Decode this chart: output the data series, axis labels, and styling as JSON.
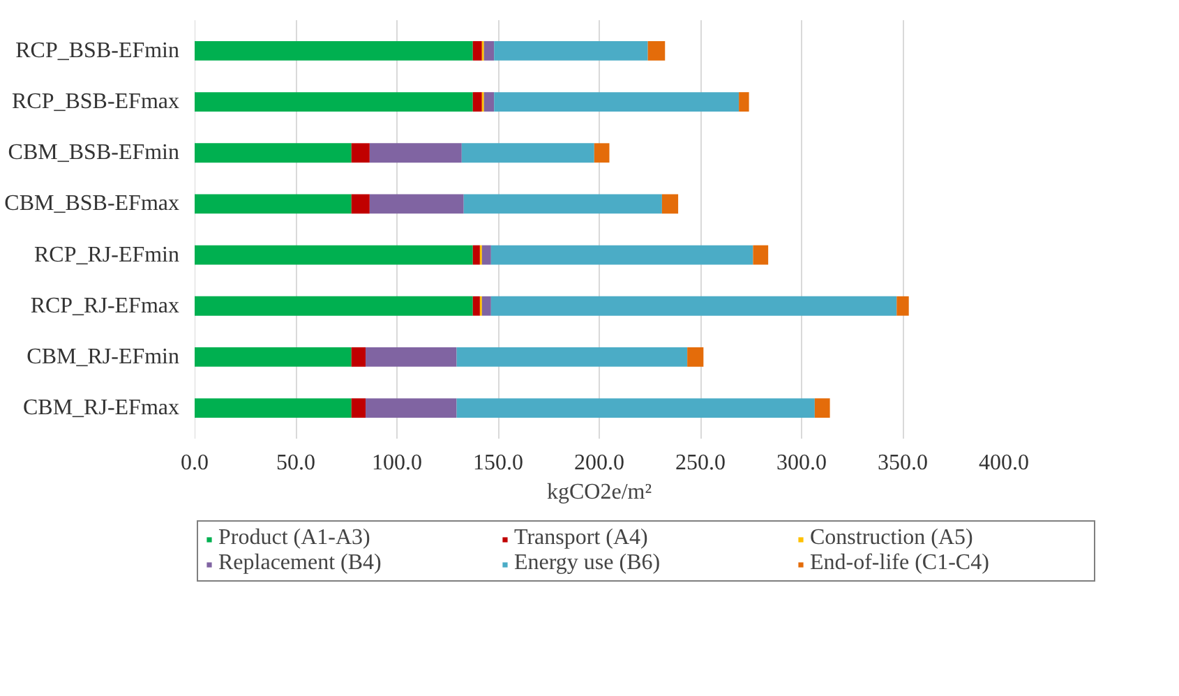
{
  "chart_data": {
    "type": "bar",
    "orientation": "horizontal",
    "stacked": true,
    "xlabel": "kgCO2e/m²",
    "categories": [
      "RCP_BSB-EFmin",
      "RCP_BSB-EFmax",
      "CBM_BSB-EFmin",
      "CBM_BSB-EFmax",
      "RCP_RJ-EFmin",
      "RCP_RJ-EFmax",
      "CBM_RJ-EFmin",
      "CBM_RJ-EFmax"
    ],
    "series": [
      {
        "name": "Product (A1-A3)",
        "color": "#00b050",
        "values": [
          137.5,
          137.5,
          77.5,
          77.5,
          137.5,
          137.5,
          77.5,
          77.5
        ]
      },
      {
        "name": "Transport (A4)",
        "color": "#c00000",
        "values": [
          4.5,
          4.5,
          9,
          9,
          3.5,
          3.5,
          7,
          7
        ]
      },
      {
        "name": "Construction (A5)",
        "color": "#ffc000",
        "values": [
          1,
          1,
          0,
          0,
          1,
          1,
          0,
          0
        ]
      },
      {
        "name": "Replacement (B4)",
        "color": "#8064a2",
        "values": [
          5,
          5,
          45.5,
          46.5,
          4.5,
          4.5,
          45,
          45
        ]
      },
      {
        "name": "Energy use (B6)",
        "color": "#4bacc6",
        "values": [
          76,
          121,
          65.5,
          98,
          129.5,
          200.5,
          114,
          177
        ]
      },
      {
        "name": "End-of-life (C1-C4)",
        "color": "#e46c0a",
        "values": [
          8.5,
          5,
          7.5,
          8,
          7.5,
          6,
          8,
          7.5
        ]
      }
    ],
    "xlim": [
      0,
      400
    ],
    "xticks": [
      {
        "value": 0,
        "label": "0.0"
      },
      {
        "value": 50,
        "label": "50.0"
      },
      {
        "value": 100,
        "label": "100.0"
      },
      {
        "value": 150,
        "label": "150.0"
      },
      {
        "value": 200,
        "label": "200.0"
      },
      {
        "value": 250,
        "label": "250.0"
      },
      {
        "value": 300,
        "label": "300.0"
      },
      {
        "value": 350,
        "label": "350.0"
      },
      {
        "value": 400,
        "label": "400.0"
      }
    ],
    "grid": "x",
    "legend": "bottom"
  }
}
